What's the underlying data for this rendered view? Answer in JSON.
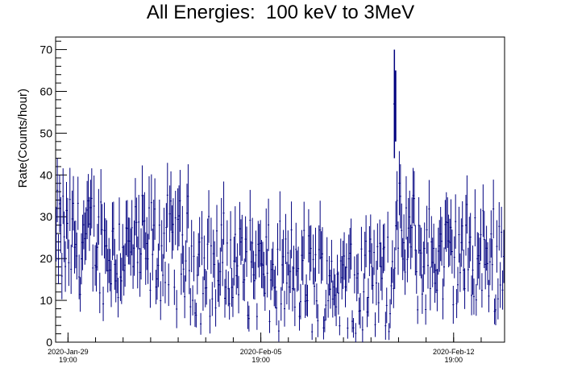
{
  "chart_data": {
    "type": "scatter",
    "title": "All Energies:  100 keV to 3MeV",
    "ylabel": "Rate(Counts/hour)",
    "xlabel": "",
    "ylim": [
      0,
      73
    ],
    "xlim_days": [
      -0.45,
      15.85
    ],
    "yticks": [
      0,
      10,
      20,
      30,
      40,
      50,
      60,
      70
    ],
    "xticks": [
      {
        "day": 0,
        "date": "2020-Jan-29",
        "time": "19:00"
      },
      {
        "day": 7,
        "date": "2020-Feb-05",
        "time": "19:00"
      },
      {
        "day": 14,
        "date": "2020-Feb-12",
        "time": "19:00"
      }
    ],
    "series_color": "#00007f",
    "peak": {
      "day": 11.85,
      "value": 57,
      "error": 13
    },
    "notes": "Hourly count-rate series with error bars; values fluctuate roughly between 5 and 40 counts/hour, with elevated values near Jan-30 and a spike near 57 counts/hour around Feb-10."
  }
}
